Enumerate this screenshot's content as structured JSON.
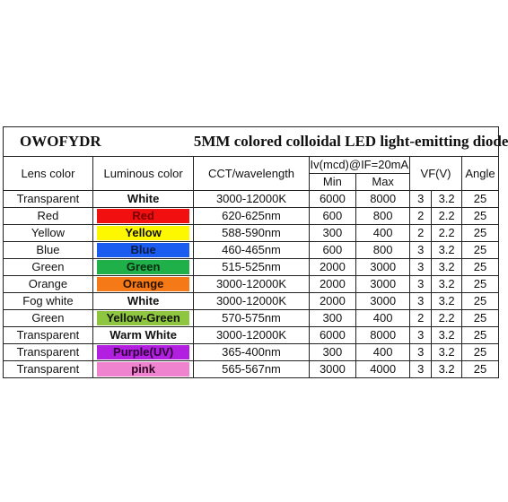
{
  "title": {
    "brand": "OWOFYDR",
    "heading": "5MM colored colloidal LED light-emitting diode"
  },
  "headers": {
    "lens_color": "Lens color",
    "luminous_color": "Luminous color",
    "cct": "CCT/wavelength",
    "iv": "Iv(mcd)@IF=20mA",
    "min": "Min",
    "max": "Max",
    "vf": "VF(V)",
    "angle": "Angle"
  },
  "rows": [
    {
      "lens": "Transparent",
      "luminous": "White",
      "bg": "#ffffff",
      "fg": "#111111",
      "cct": "3000-12000K",
      "min": "6000",
      "max": "8000",
      "vf1": "3",
      "vf2": "3.2",
      "angle": "25"
    },
    {
      "lens": "Red",
      "luminous": "Red",
      "bg": "#f20f0f",
      "fg": "#7a0000",
      "cct": "620-625nm",
      "min": "600",
      "max": "800",
      "vf1": "2",
      "vf2": "2.2",
      "angle": "25"
    },
    {
      "lens": "Yellow",
      "luminous": "Yellow",
      "bg": "#fdf700",
      "fg": "#111111",
      "cct": "588-590nm",
      "min": "300",
      "max": "400",
      "vf1": "2",
      "vf2": "2.2",
      "angle": "25"
    },
    {
      "lens": "Blue",
      "luminous": "Blue",
      "bg": "#1a5cf0",
      "fg": "#0b1a40",
      "cct": "460-465nm",
      "min": "600",
      "max": "800",
      "vf1": "3",
      "vf2": "3.2",
      "angle": "25"
    },
    {
      "lens": "Green",
      "luminous": "Green",
      "bg": "#1fb04a",
      "fg": "#0a2a10",
      "cct": "515-525nm",
      "min": "2000",
      "max": "3000",
      "vf1": "3",
      "vf2": "3.2",
      "angle": "25"
    },
    {
      "lens": "Orange",
      "luminous": "Orange",
      "bg": "#f57a17",
      "fg": "#2a1000",
      "cct": "3000-12000K",
      "min": "2000",
      "max": "3000",
      "vf1": "3",
      "vf2": "3.2",
      "angle": "25"
    },
    {
      "lens": "Fog white",
      "luminous": "White",
      "bg": "#ffffff",
      "fg": "#111111",
      "cct": "3000-12000K",
      "min": "2000",
      "max": "3000",
      "vf1": "3",
      "vf2": "3.2",
      "angle": "25"
    },
    {
      "lens": "Green",
      "luminous": "Yellow-Green",
      "bg": "#8ec63f",
      "fg": "#111111",
      "cct": "570-575nm",
      "min": "300",
      "max": "400",
      "vf1": "2",
      "vf2": "2.2",
      "angle": "25"
    },
    {
      "lens": "Transparent",
      "luminous": "Warm White",
      "bg": "#ffffff",
      "fg": "#111111",
      "cct": "3000-12000K",
      "min": "6000",
      "max": "8000",
      "vf1": "3",
      "vf2": "3.2",
      "angle": "25"
    },
    {
      "lens": "Transparent",
      "luminous": "Purple(UV)",
      "bg": "#b21fe0",
      "fg": "#2a0033",
      "cct": "365-400nm",
      "min": "300",
      "max": "400",
      "vf1": "3",
      "vf2": "3.2",
      "angle": "25"
    },
    {
      "lens": "Transparent",
      "luminous": "pink",
      "bg": "#f083cf",
      "fg": "#2a0020",
      "cct": "565-567nm",
      "min": "3000",
      "max": "4000",
      "vf1": "3",
      "vf2": "3.2",
      "angle": "25"
    }
  ]
}
